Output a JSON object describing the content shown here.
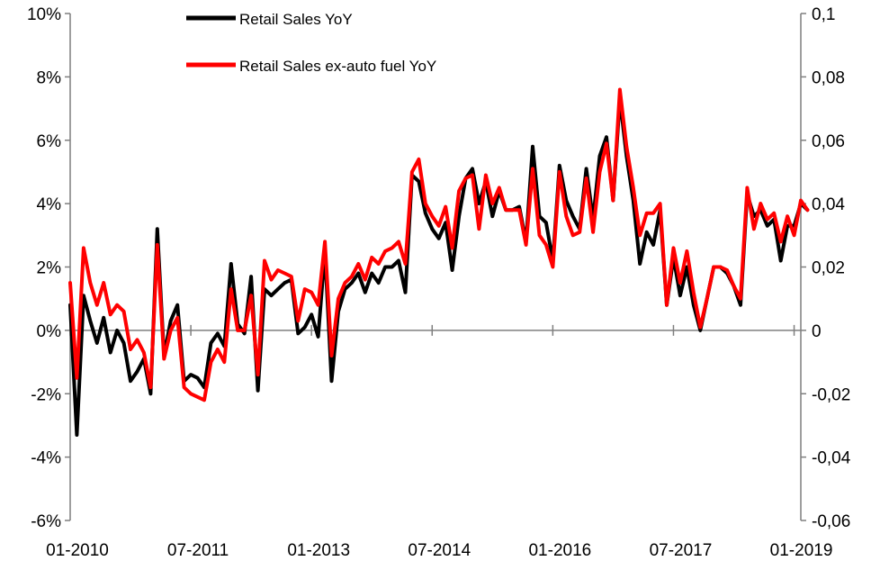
{
  "chart_data": {
    "type": "line",
    "x_labels": [
      "01-2010",
      "07-2011",
      "01-2013",
      "07-2014",
      "01-2016",
      "07-2017",
      "01-2019"
    ],
    "x_label_months": [
      0,
      18,
      36,
      54,
      72,
      90,
      108
    ],
    "y_left": {
      "ticks": [
        10,
        8,
        6,
        4,
        2,
        0,
        -2,
        -4,
        -6
      ],
      "tick_labels": [
        "10%",
        "8%",
        "6%",
        "4%",
        "2%",
        "0%",
        "-2%",
        "-4%",
        "-6%"
      ],
      "range": [
        -6,
        10
      ]
    },
    "y_right": {
      "tick_labels": [
        "0,1",
        "0,08",
        "0,06",
        "0,04",
        "0,02",
        "0",
        "-0,02",
        "-0,04",
        "-0,06"
      ],
      "range": [
        -0.06,
        0.1
      ]
    },
    "grid": false,
    "legend_position": "top",
    "series": [
      {
        "name": "Retail Sales YoY",
        "color": "#000000",
        "axis": "left",
        "values": [
          0.8,
          -3.3,
          1.1,
          0.3,
          -0.4,
          0.4,
          -0.7,
          0,
          -0.4,
          -1.6,
          -1.3,
          -0.9,
          -2.0,
          3.2,
          -0.8,
          0.3,
          0.8,
          -1.6,
          -1.4,
          -1.5,
          -1.8,
          -0.4,
          -0.1,
          -0.5,
          2.1,
          0.2,
          -0.1,
          1.7,
          -1.9,
          1.3,
          1.1,
          1.3,
          1.5,
          1.6,
          -0.1,
          0.1,
          0.5,
          -0.2,
          2.5,
          -1.6,
          0.6,
          1.3,
          1.5,
          1.8,
          1.2,
          1.8,
          1.5,
          2.0,
          2.0,
          2.2,
          1.2,
          4.9,
          4.7,
          3.7,
          3.2,
          2.9,
          3.4,
          1.9,
          3.6,
          4.8,
          5.1,
          4.0,
          4.7,
          3.6,
          4.4,
          3.8,
          3.8,
          3.9,
          2.8,
          5.8,
          3.6,
          3.4,
          2.2,
          5.2,
          4.1,
          3.6,
          3.2,
          5.1,
          3.5,
          5.5,
          6.1,
          4.1,
          7.3,
          5.5,
          4.1,
          2.1,
          3.1,
          2.7,
          3.8,
          0.8,
          2.3,
          1.1,
          2.0,
          0.8,
          0,
          1.0,
          2.0,
          2.0,
          1.8,
          1.4,
          0.8,
          4.3,
          3.6,
          3.8,
          3.3,
          3.5,
          2.2,
          3.3,
          3.3,
          4.0,
          3.8
        ]
      },
      {
        "name": "Retail Sales ex-auto fuel YoY",
        "color": "#ff0000",
        "axis": "left",
        "values": [
          1.5,
          -1.5,
          2.6,
          1.5,
          0.8,
          1.5,
          0.5,
          0.8,
          0.6,
          -0.6,
          -0.3,
          -0.7,
          -1.8,
          2.7,
          -0.9,
          0,
          0.4,
          -1.8,
          -2.0,
          -2.1,
          -2.2,
          -1.0,
          -0.6,
          -1.0,
          1.3,
          0,
          0,
          1.1,
          -1.4,
          2.2,
          1.6,
          1.9,
          1.8,
          1.7,
          0.3,
          1.3,
          1.2,
          0.8,
          2.8,
          -0.8,
          1.0,
          1.5,
          1.7,
          2.1,
          1.6,
          2.3,
          2.1,
          2.5,
          2.6,
          2.8,
          2.1,
          5.0,
          5.4,
          4.0,
          3.6,
          3.3,
          3.9,
          2.6,
          4.4,
          4.8,
          4.9,
          3.2,
          4.9,
          4.0,
          4.5,
          3.8,
          3.8,
          3.8,
          2.7,
          5.1,
          3.0,
          2.7,
          2.0,
          5.0,
          3.6,
          3.0,
          3.1,
          4.8,
          3.1,
          5.0,
          5.9,
          4.1,
          7.6,
          5.8,
          4.5,
          3.0,
          3.7,
          3.7,
          4.0,
          0.8,
          2.6,
          1.5,
          2.5,
          1.2,
          0.1,
          1.0,
          2.0,
          2.0,
          1.9,
          1.4,
          1.0,
          4.5,
          3.2,
          4.0,
          3.5,
          3.7,
          2.8,
          3.6,
          3.0,
          4.1,
          3.8
        ]
      }
    ]
  }
}
